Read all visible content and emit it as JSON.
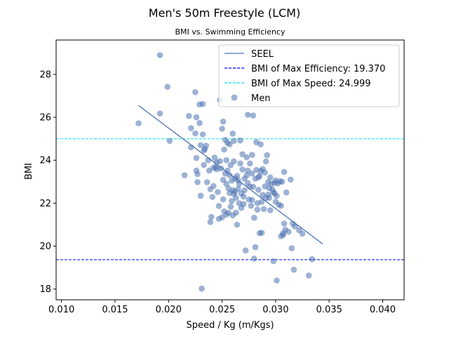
{
  "chart_data": {
    "type": "scatter",
    "title": "Men's 50m Freestyle (LCM)",
    "subtitle": "BMI vs. Swimming Efficiency",
    "xlabel": "Speed / Kg (m/Kgs)",
    "ylabel": "BMI",
    "xlim": [
      0.0095,
      0.042
    ],
    "ylim": [
      17.5,
      29.6
    ],
    "xticks": [
      "0.010",
      "0.015",
      "0.020",
      "0.025",
      "0.030",
      "0.035",
      "0.040"
    ],
    "yticks": [
      "18",
      "20",
      "22",
      "24",
      "26",
      "28"
    ],
    "grid": false,
    "legend_position": "upper-right",
    "colors": {
      "seel": "#4c72b0",
      "max_efficiency": "#0000ff",
      "max_speed": "#00e5ee",
      "men": "#4c72b0"
    },
    "series": [
      {
        "name": "SEEL",
        "kind": "line",
        "x": [
          0.0172,
          0.0344
        ],
        "y": [
          26.55,
          20.1
        ]
      },
      {
        "name": "BMI of Max Efficiency: 19.370",
        "kind": "hline",
        "y": 19.37
      },
      {
        "name": "BMI of Max Speed: 24.999",
        "kind": "hline",
        "y": 24.999
      },
      {
        "name": "Men",
        "kind": "scatter",
        "points": [
          [
            0.0172,
            25.72
          ],
          [
            0.0192,
            28.9
          ],
          [
            0.0192,
            26.18
          ],
          [
            0.0199,
            27.42
          ],
          [
            0.0201,
            24.9
          ],
          [
            0.0215,
            23.3
          ],
          [
            0.0219,
            26.06
          ],
          [
            0.0221,
            25.5
          ],
          [
            0.0221,
            24.6
          ],
          [
            0.0225,
            27.17
          ],
          [
            0.0225,
            25.25
          ],
          [
            0.0226,
            26.0
          ],
          [
            0.0226,
            24.11
          ],
          [
            0.0226,
            23.52
          ],
          [
            0.0227,
            23.35
          ],
          [
            0.0227,
            22.98
          ],
          [
            0.0229,
            26.6
          ],
          [
            0.0229,
            25.73
          ],
          [
            0.023,
            24.7
          ],
          [
            0.023,
            22.35
          ],
          [
            0.0231,
            18.02
          ],
          [
            0.0232,
            26.62
          ],
          [
            0.0232,
            25.2
          ],
          [
            0.0233,
            24.46
          ],
          [
            0.0233,
            23.78
          ],
          [
            0.0234,
            24.52
          ],
          [
            0.0235,
            24.68
          ],
          [
            0.0236,
            22.98
          ],
          [
            0.0237,
            24.0
          ],
          [
            0.0238,
            23.52
          ],
          [
            0.0239,
            22.65
          ],
          [
            0.0239,
            21.12
          ],
          [
            0.024,
            21.36
          ],
          [
            0.0241,
            22.29
          ],
          [
            0.0242,
            23.65
          ],
          [
            0.0242,
            22.8
          ],
          [
            0.0243,
            24.12
          ],
          [
            0.0244,
            23.68
          ],
          [
            0.0245,
            23.9
          ],
          [
            0.0245,
            23.58
          ],
          [
            0.0246,
            22.52
          ],
          [
            0.0247,
            21.27
          ],
          [
            0.0247,
            21.87
          ],
          [
            0.0248,
            26.8
          ],
          [
            0.0248,
            23.96
          ],
          [
            0.0249,
            23.62
          ],
          [
            0.025,
            25.47
          ],
          [
            0.025,
            21.34
          ],
          [
            0.0251,
            25.8
          ],
          [
            0.0251,
            23.09
          ],
          [
            0.0251,
            22.18
          ],
          [
            0.0252,
            24.5
          ],
          [
            0.0252,
            21.62
          ],
          [
            0.0253,
            23.38
          ],
          [
            0.0253,
            24.95
          ],
          [
            0.0254,
            24.0
          ],
          [
            0.0254,
            22.9
          ],
          [
            0.0254,
            21.47
          ],
          [
            0.0255,
            24.82
          ],
          [
            0.0255,
            23.52
          ],
          [
            0.0256,
            22.69
          ],
          [
            0.0256,
            21.55
          ],
          [
            0.0257,
            24.74
          ],
          [
            0.0257,
            23.3
          ],
          [
            0.0257,
            22.47
          ],
          [
            0.0258,
            21.84
          ],
          [
            0.0258,
            23.77
          ],
          [
            0.0259,
            22.1
          ],
          [
            0.0259,
            23.05
          ],
          [
            0.026,
            22.6
          ],
          [
            0.026,
            21.43
          ],
          [
            0.026,
            25.24
          ],
          [
            0.0261,
            23.95
          ],
          [
            0.0261,
            24.9
          ],
          [
            0.0261,
            22.43
          ],
          [
            0.0262,
            23.15
          ],
          [
            0.0262,
            22.54
          ],
          [
            0.0263,
            22.25
          ],
          [
            0.0263,
            21.56
          ],
          [
            0.0264,
            23.27
          ],
          [
            0.0264,
            21.0
          ],
          [
            0.0265,
            23.07
          ],
          [
            0.0265,
            22.66
          ],
          [
            0.0266,
            22.0
          ],
          [
            0.0266,
            22.9
          ],
          [
            0.0267,
            24.92
          ],
          [
            0.0267,
            23.85
          ],
          [
            0.0268,
            21.78
          ],
          [
            0.0268,
            22.45
          ],
          [
            0.0269,
            24.28
          ],
          [
            0.0269,
            23.57
          ],
          [
            0.027,
            21.96
          ],
          [
            0.027,
            22.31
          ],
          [
            0.0271,
            23.14
          ],
          [
            0.0271,
            22.6
          ],
          [
            0.0272,
            19.8
          ],
          [
            0.0273,
            24.14
          ],
          [
            0.0273,
            23.3
          ],
          [
            0.0274,
            22.94
          ],
          [
            0.0274,
            26.12
          ],
          [
            0.0274,
            23.52
          ],
          [
            0.0275,
            22.17
          ],
          [
            0.0276,
            23.85
          ],
          [
            0.0276,
            22.77
          ],
          [
            0.0277,
            21.88
          ],
          [
            0.0278,
            24.25
          ],
          [
            0.0278,
            23.38
          ],
          [
            0.0278,
            22.15
          ],
          [
            0.0279,
            26.08
          ],
          [
            0.0279,
            22.77
          ],
          [
            0.028,
            21.32
          ],
          [
            0.028,
            19.42
          ],
          [
            0.0281,
            19.95
          ],
          [
            0.0281,
            23.14
          ],
          [
            0.0282,
            23.55
          ],
          [
            0.0282,
            24.84
          ],
          [
            0.0283,
            22.0
          ],
          [
            0.0283,
            21.7
          ],
          [
            0.0284,
            23.2
          ],
          [
            0.0284,
            22.62
          ],
          [
            0.0285,
            20.6
          ],
          [
            0.0285,
            23.28
          ],
          [
            0.0286,
            24.74
          ],
          [
            0.0286,
            23.5
          ],
          [
            0.0287,
            22.06
          ],
          [
            0.0287,
            20.62
          ],
          [
            0.0288,
            22.39
          ],
          [
            0.0288,
            23.59
          ],
          [
            0.0289,
            21.73
          ],
          [
            0.029,
            23.43
          ],
          [
            0.029,
            22.78
          ],
          [
            0.0291,
            22.24
          ],
          [
            0.0291,
            23.95
          ],
          [
            0.0292,
            24.24
          ],
          [
            0.0293,
            22.98
          ],
          [
            0.0293,
            22.4
          ],
          [
            0.0294,
            22.25
          ],
          [
            0.0294,
            22.7
          ],
          [
            0.0295,
            23.2
          ],
          [
            0.0295,
            21.67
          ],
          [
            0.0296,
            22.9
          ],
          [
            0.0297,
            22.64
          ],
          [
            0.0298,
            19.3
          ],
          [
            0.0298,
            22.51
          ],
          [
            0.0299,
            22.45
          ],
          [
            0.0299,
            22.95
          ],
          [
            0.03,
            23.06
          ],
          [
            0.03,
            22.07
          ],
          [
            0.0301,
            18.4
          ],
          [
            0.0301,
            22.34
          ],
          [
            0.0302,
            22.92
          ],
          [
            0.0303,
            21.93
          ],
          [
            0.0304,
            23.02
          ],
          [
            0.0305,
            20.46
          ],
          [
            0.0305,
            21.88
          ],
          [
            0.0306,
            23.0
          ],
          [
            0.0307,
            20.6
          ],
          [
            0.0307,
            20.52
          ],
          [
            0.0308,
            23.46
          ],
          [
            0.0308,
            21.05
          ],
          [
            0.0309,
            20.76
          ],
          [
            0.031,
            22.5
          ],
          [
            0.0312,
            20.67
          ],
          [
            0.0314,
            23.1
          ],
          [
            0.0315,
            19.9
          ],
          [
            0.0316,
            21.05
          ],
          [
            0.0317,
            18.9
          ],
          [
            0.0318,
            20.92
          ],
          [
            0.0322,
            20.74
          ],
          [
            0.0325,
            20.58
          ],
          [
            0.0331,
            18.63
          ],
          [
            0.0334,
            19.39
          ]
        ]
      }
    ]
  }
}
